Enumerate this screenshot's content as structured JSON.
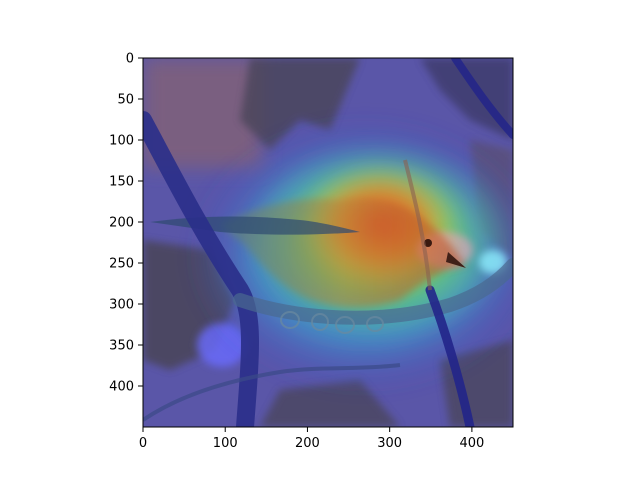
{
  "figure": {
    "background": "#ffffff"
  },
  "image": {
    "subject": "bird-perched-on-branch",
    "overlay": "heatmap-jet",
    "colors": {
      "heat_low": "#3a35d0",
      "heat_mid": "#3ee07a",
      "heat_warm": "#f2e23a",
      "heat_high": "#e8341c",
      "bird_body": "#b8602c",
      "branch": "#2a2f8a",
      "leaf_dark": "#4a4458",
      "leaf_bg": "#6a6488"
    }
  },
  "axes": {
    "xlim": [
      0,
      450
    ],
    "ylim": [
      450,
      0
    ],
    "x_ticks": [
      {
        "value": 0,
        "label": "0"
      },
      {
        "value": 100,
        "label": "100"
      },
      {
        "value": 200,
        "label": "200"
      },
      {
        "value": 300,
        "label": "300"
      },
      {
        "value": 400,
        "label": "400"
      }
    ],
    "y_ticks": [
      {
        "value": 0,
        "label": "0"
      },
      {
        "value": 50,
        "label": "50"
      },
      {
        "value": 100,
        "label": "100"
      },
      {
        "value": 150,
        "label": "150"
      },
      {
        "value": 200,
        "label": "200"
      },
      {
        "value": 250,
        "label": "250"
      },
      {
        "value": 300,
        "label": "300"
      },
      {
        "value": 350,
        "label": "350"
      },
      {
        "value": 400,
        "label": "400"
      }
    ]
  }
}
